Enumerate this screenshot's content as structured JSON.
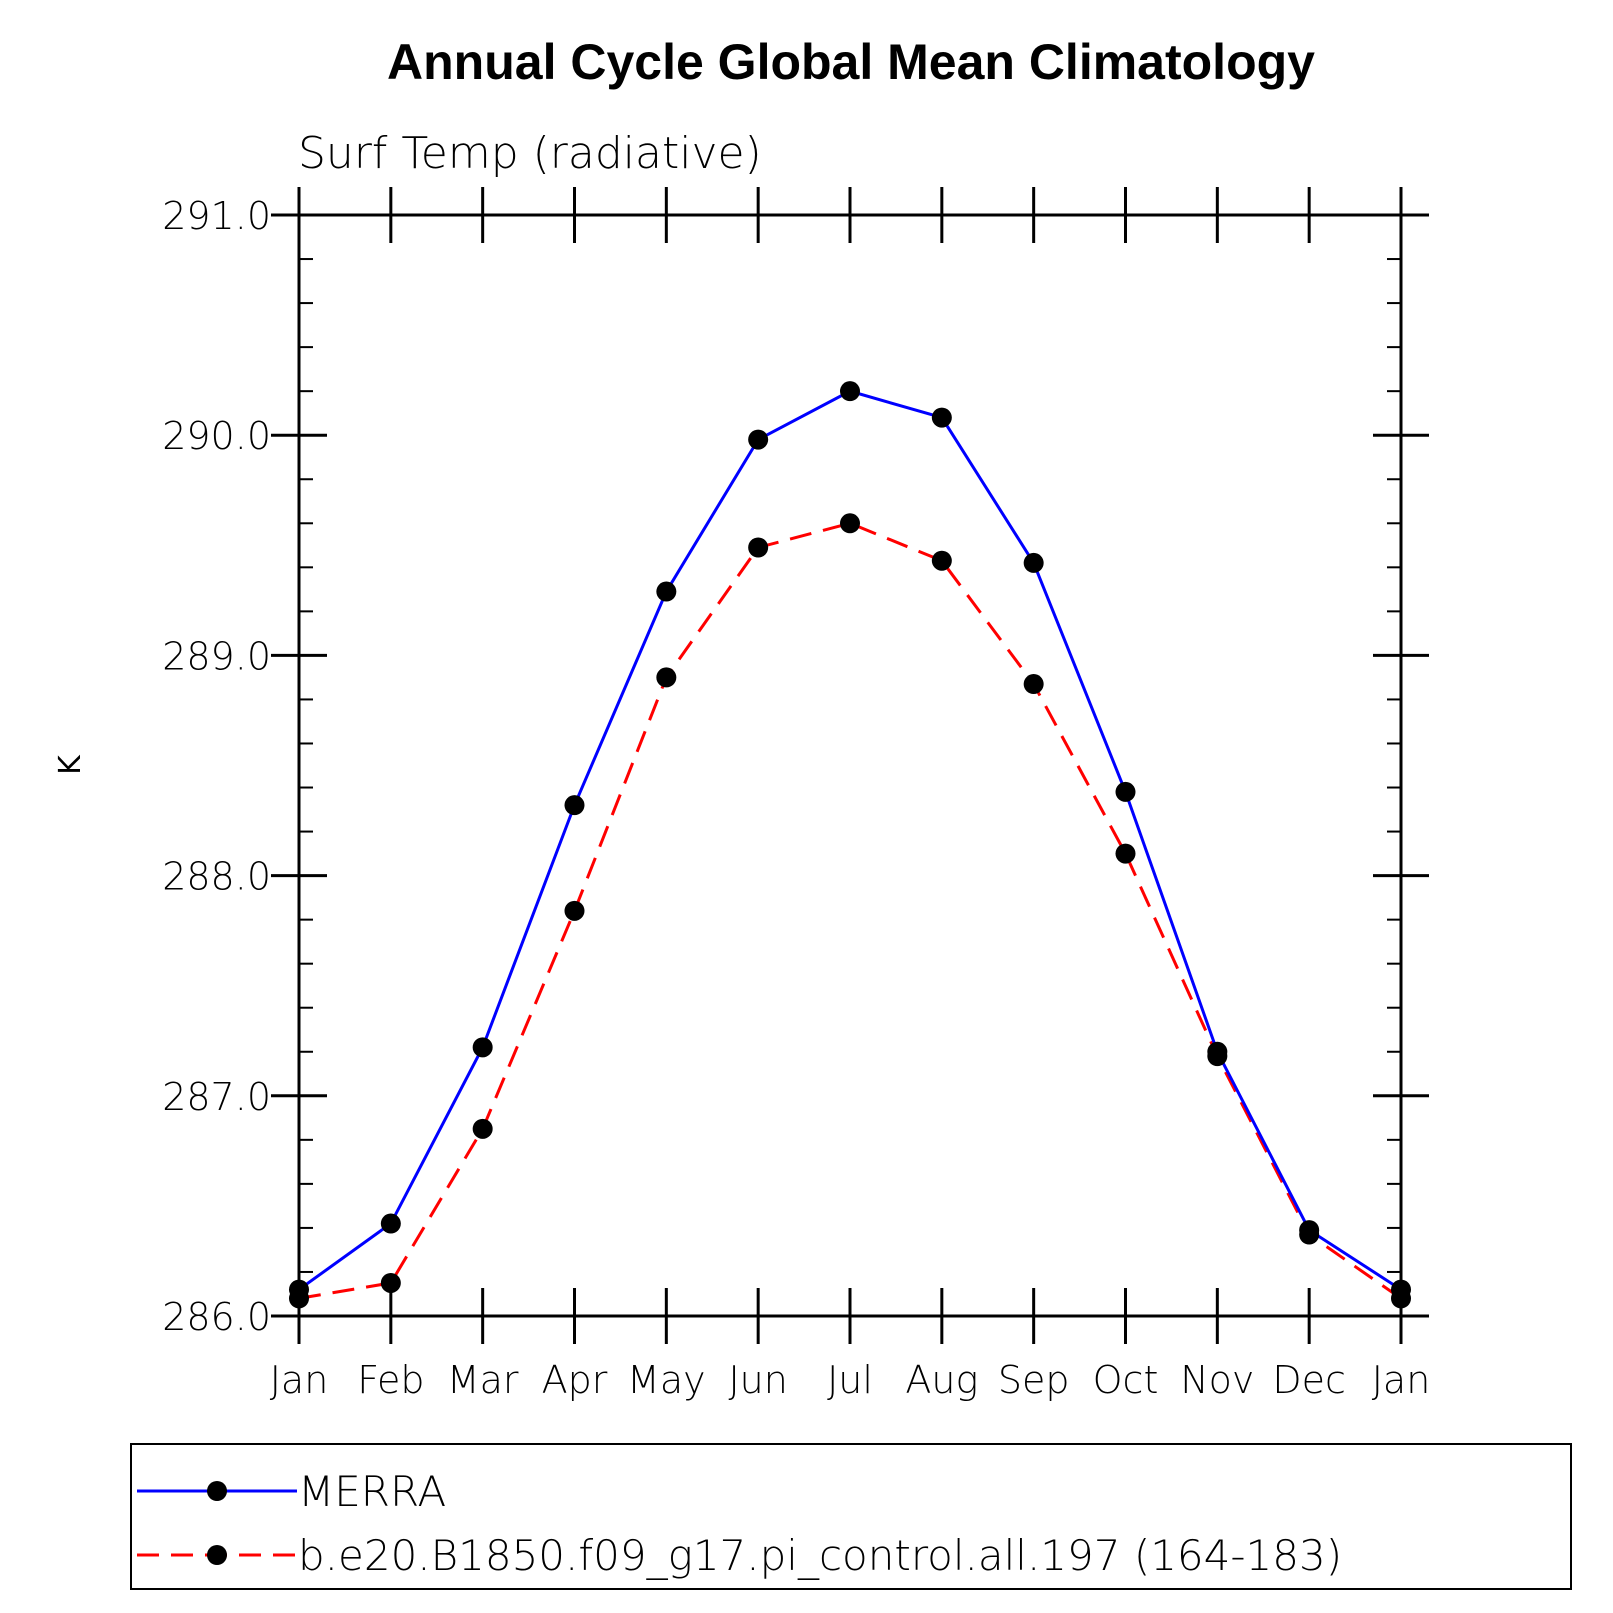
{
  "chart_data": {
    "type": "line",
    "title": "Annual Cycle Global Mean Climatology",
    "subtitle": "Surf Temp (radiative)",
    "xlabel": "",
    "ylabel": "K",
    "categories": [
      "Jan",
      "Feb",
      "Mar",
      "Apr",
      "May",
      "Jun",
      "Jul",
      "Aug",
      "Sep",
      "Oct",
      "Nov",
      "Dec",
      "Jan"
    ],
    "ylim": [
      286.0,
      291.0
    ],
    "yticks": [
      "286.0",
      "287.0",
      "288.0",
      "289.0",
      "290.0",
      "291.0"
    ],
    "y_minor_step": 0.2,
    "grid": false,
    "legend_position": "bottom",
    "series": [
      {
        "name": "MERRA",
        "color": "#0000ff",
        "line_style": "solid",
        "marker": "filled-circle",
        "values": [
          286.12,
          286.42,
          287.22,
          288.32,
          289.29,
          289.98,
          290.2,
          290.08,
          289.42,
          288.38,
          287.2,
          286.39,
          286.12
        ]
      },
      {
        "name": "b.e20.B1850.f09_g17.pi_control.all.197 (164-183)",
        "color": "#ff0000",
        "line_style": "dashed",
        "marker": "filled-circle",
        "values": [
          286.08,
          286.15,
          286.85,
          287.84,
          288.9,
          289.49,
          289.6,
          289.43,
          288.87,
          288.1,
          287.18,
          286.37,
          286.08
        ]
      }
    ]
  }
}
